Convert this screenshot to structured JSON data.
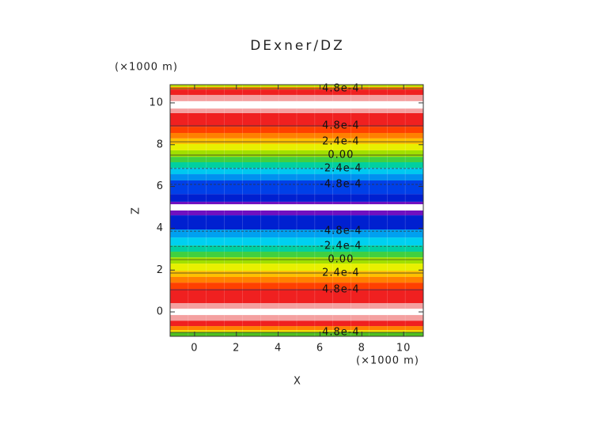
{
  "chart_data": {
    "type": "contour",
    "title": "DExner/DZ",
    "x_label": "X",
    "y_label": "Z",
    "x_unit": "(×1000 m)",
    "y_unit": "(×1000 m)",
    "xlim": [
      -1.17,
      10.94
    ],
    "ylim": [
      -1.17,
      10.87
    ],
    "xticks": [
      0,
      2,
      4,
      6,
      8,
      10
    ],
    "yticks": [
      0,
      2,
      4,
      6,
      8,
      10
    ],
    "levels": [
      -1.17,
      -0.98,
      -0.87,
      -0.68,
      -0.42,
      -0.15,
      0.15,
      0.42,
      1.1,
      1.4,
      1.67,
      1.97,
      2.31,
      2.61,
      2.88,
      3.18,
      3.56,
      3.94,
      4.62,
      4.85,
      5.15,
      5.27,
      5.64,
      6.29,
      6.59,
      6.89,
      7.16,
      7.42,
      7.73,
      8.03,
      8.3,
      8.56,
      8.86,
      9.51,
      9.73,
      10.08,
      10.38,
      10.64,
      10.76,
      10.87
    ],
    "colors": [
      "#50c020",
      "#f0e000",
      "#ff8000",
      "#f02020",
      "#f4a0a0",
      "#ffffff",
      "#f4a0a0",
      "#f02020",
      "#ff4000",
      "#ff8000",
      "#ffc000",
      "#e8f000",
      "#a0e000",
      "#40d040",
      "#00d0a0",
      "#00d0f0",
      "#00a0f0",
      "#0020d0",
      "#7010c0",
      "#ffffff",
      "#7010c0",
      "#0020d0",
      "#0040e8",
      "#0090f0",
      "#00c8f0",
      "#00d0a0",
      "#40d040",
      "#a0e000",
      "#e8f000",
      "#ffc000",
      "#ff8000",
      "#ff4000",
      "#f02020",
      "#f4a0a0",
      "#ffffff",
      "#f4a0a0",
      "#f02020",
      "#ff8000",
      "#c0e000"
    ],
    "contour_x": 7,
    "contours": [
      {
        "label": "4.8e-4",
        "z": -0.98
      },
      {
        "label": "4.8e-4",
        "z": 1.06
      },
      {
        "label": "2.4e-4",
        "z": 1.86
      },
      {
        "label": "0.00",
        "z": 2.5
      },
      {
        "label": "-2.4e-4",
        "z": 3.14
      },
      {
        "label": "-4.8e-4",
        "z": 3.86
      },
      {
        "label": "-4.8e-4",
        "z": 6.1
      },
      {
        "label": "-2.4e-4",
        "z": 6.86
      },
      {
        "label": "0.00",
        "z": 7.5
      },
      {
        "label": "2.4e-4",
        "z": 8.14
      },
      {
        "label": "4.8e-4",
        "z": 8.9
      },
      {
        "label": "4.8e-4",
        "z": 10.68
      }
    ]
  }
}
